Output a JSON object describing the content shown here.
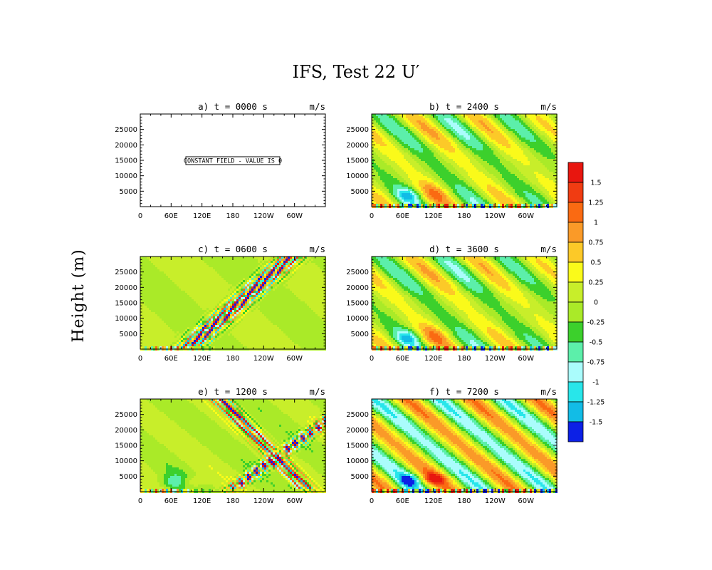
{
  "figure": {
    "title": "IFS, Test 22 U′",
    "ylabel": "Height (m)"
  },
  "chart_data": [
    {
      "type": "heatmap",
      "id": "a",
      "title": "a) t = 0000 s",
      "units": "m/s",
      "x_ticks": [
        "0",
        "60E",
        "120E",
        "180",
        "120W",
        "60W"
      ],
      "y_ticks": [
        5000,
        10000,
        15000,
        20000,
        25000
      ],
      "ylim": [
        0,
        30000
      ],
      "field": "constant",
      "note": "CONSTANT FIELD - VALUE IS 0"
    },
    {
      "type": "heatmap",
      "id": "b",
      "title": "b) t = 2400 s",
      "units": "m/s",
      "x_ticks": [
        "0",
        "60E",
        "120E",
        "180",
        "120W",
        "60W"
      ],
      "y_ticks": [
        5000,
        10000,
        15000,
        20000,
        25000
      ],
      "ylim": [
        0,
        30000
      ],
      "field": "tilted_cells"
    },
    {
      "type": "heatmap",
      "id": "c",
      "title": "c) t = 0600 s",
      "units": "m/s",
      "x_ticks": [
        "0",
        "60E",
        "120E",
        "180",
        "120W",
        "60W"
      ],
      "y_ticks": [
        5000,
        10000,
        15000,
        20000,
        25000
      ],
      "ylim": [
        0,
        30000
      ],
      "field": "wave_packet"
    },
    {
      "type": "heatmap",
      "id": "d",
      "title": "d) t = 3600 s",
      "units": "m/s",
      "x_ticks": [
        "0",
        "60E",
        "120E",
        "180",
        "120W",
        "60W"
      ],
      "y_ticks": [
        5000,
        10000,
        15000,
        20000,
        25000
      ],
      "ylim": [
        0,
        30000
      ],
      "field": "tilted_cells"
    },
    {
      "type": "heatmap",
      "id": "e",
      "title": "e) t = 1200 s",
      "units": "m/s",
      "x_ticks": [
        "0",
        "60E",
        "120E",
        "180",
        "120W",
        "60W"
      ],
      "y_ticks": [
        5000,
        10000,
        15000,
        20000,
        25000
      ],
      "ylim": [
        0,
        30000
      ],
      "field": "wave_packet_split"
    },
    {
      "type": "heatmap",
      "id": "f",
      "title": "f) t = 7200 s",
      "units": "m/s",
      "x_ticks": [
        "0",
        "60E",
        "120E",
        "180",
        "120W",
        "60W"
      ],
      "y_ticks": [
        5000,
        10000,
        15000,
        20000,
        25000
      ],
      "ylim": [
        0,
        30000
      ],
      "field": "tilted_cells_strong"
    }
  ],
  "colorbar": {
    "labels": [
      "1.5",
      "1.25",
      "1",
      "0.75",
      "0.5",
      "0.25",
      "0",
      "-0.25",
      "-0.5",
      "-0.75",
      "-1",
      "-1.25",
      "-1.5"
    ],
    "colors": [
      "#e8160f",
      "#f03c12",
      "#fa6a12",
      "#fa9a28",
      "#fcc928",
      "#fafa1a",
      "#c8ee2a",
      "#aaea28",
      "#3cd02c",
      "#5cefaa",
      "#aafcfc",
      "#28e6ea",
      "#12bce6",
      "#0c20e6"
    ]
  }
}
